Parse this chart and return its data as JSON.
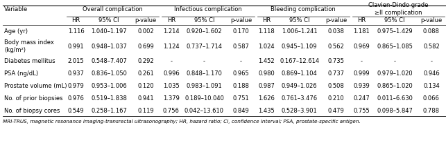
{
  "footnote": "MRI-TRUS, magnetic resonance imaging-transrectal ultrasonography; HR, hazard ratio; CI, confidence interval; PSA, prostate-specific antigen.",
  "col_groups": [
    {
      "label": "Overall complication"
    },
    {
      "label": "Infectious complication"
    },
    {
      "label": "Bleeding complication"
    },
    {
      "label": "Clavien-Dindo grade\n≥II complication"
    }
  ],
  "variables": [
    "Age (yr)",
    "Body mass index\n(kg/m²)",
    "Diabetes mellitus",
    "PSA (ng/dL)",
    "Prostate volume (mL)",
    "No. of prior biopsies",
    "No. of biopsy cores"
  ],
  "data": [
    [
      "1.116",
      "1.040–1.197",
      "0.002",
      "1.214",
      "0.920–1.602",
      "0.170",
      "1.118",
      "1.006–1.241",
      "0.038",
      "1.181",
      "0.975–1.429",
      "0.088"
    ],
    [
      "0.991",
      "0.948–1.037",
      "0.699",
      "1.124",
      "0.737–1.714",
      "0.587",
      "1.024",
      "0.945–1.109",
      "0.562",
      "0.969",
      "0.865–1.085",
      "0.582"
    ],
    [
      "2.015",
      "0.548–7.407",
      "0.292",
      "-",
      "-",
      "-",
      "1.452",
      "0.167–12.614",
      "0.735",
      "-",
      "-",
      "-"
    ],
    [
      "0.937",
      "0.836–1.050",
      "0.261",
      "0.996",
      "0.848–1.170",
      "0.965",
      "0.980",
      "0.869–1.104",
      "0.737",
      "0.999",
      "0.979–1.020",
      "0.946"
    ],
    [
      "0.979",
      "0.953–1.006",
      "0.120",
      "1.035",
      "0.983–1.091",
      "0.188",
      "0.987",
      "0.949–1.026",
      "0.508",
      "0.939",
      "0.865–1.020",
      "0.134"
    ],
    [
      "0.976",
      "0.519–1.838",
      "0.941",
      "1.379",
      "0.189–10.040",
      "0.751",
      "1.626",
      "0.761–3.476",
      "0.210",
      "0.247",
      "0.011–6.630",
      "0.066"
    ],
    [
      "0.549",
      "0.258–1.167",
      "0.119",
      "0.756",
      "0.042–13.610",
      "0.849",
      "1.435",
      "0.528–3.901",
      "0.479",
      "0.755",
      "0.098–5.847",
      "0.788"
    ]
  ],
  "bg_color": "#ffffff",
  "text_color": "#000000",
  "line_color": "#000000",
  "fs_header": 6.0,
  "fs_data": 6.0,
  "fs_var": 6.0,
  "fs_footnote": 5.2
}
